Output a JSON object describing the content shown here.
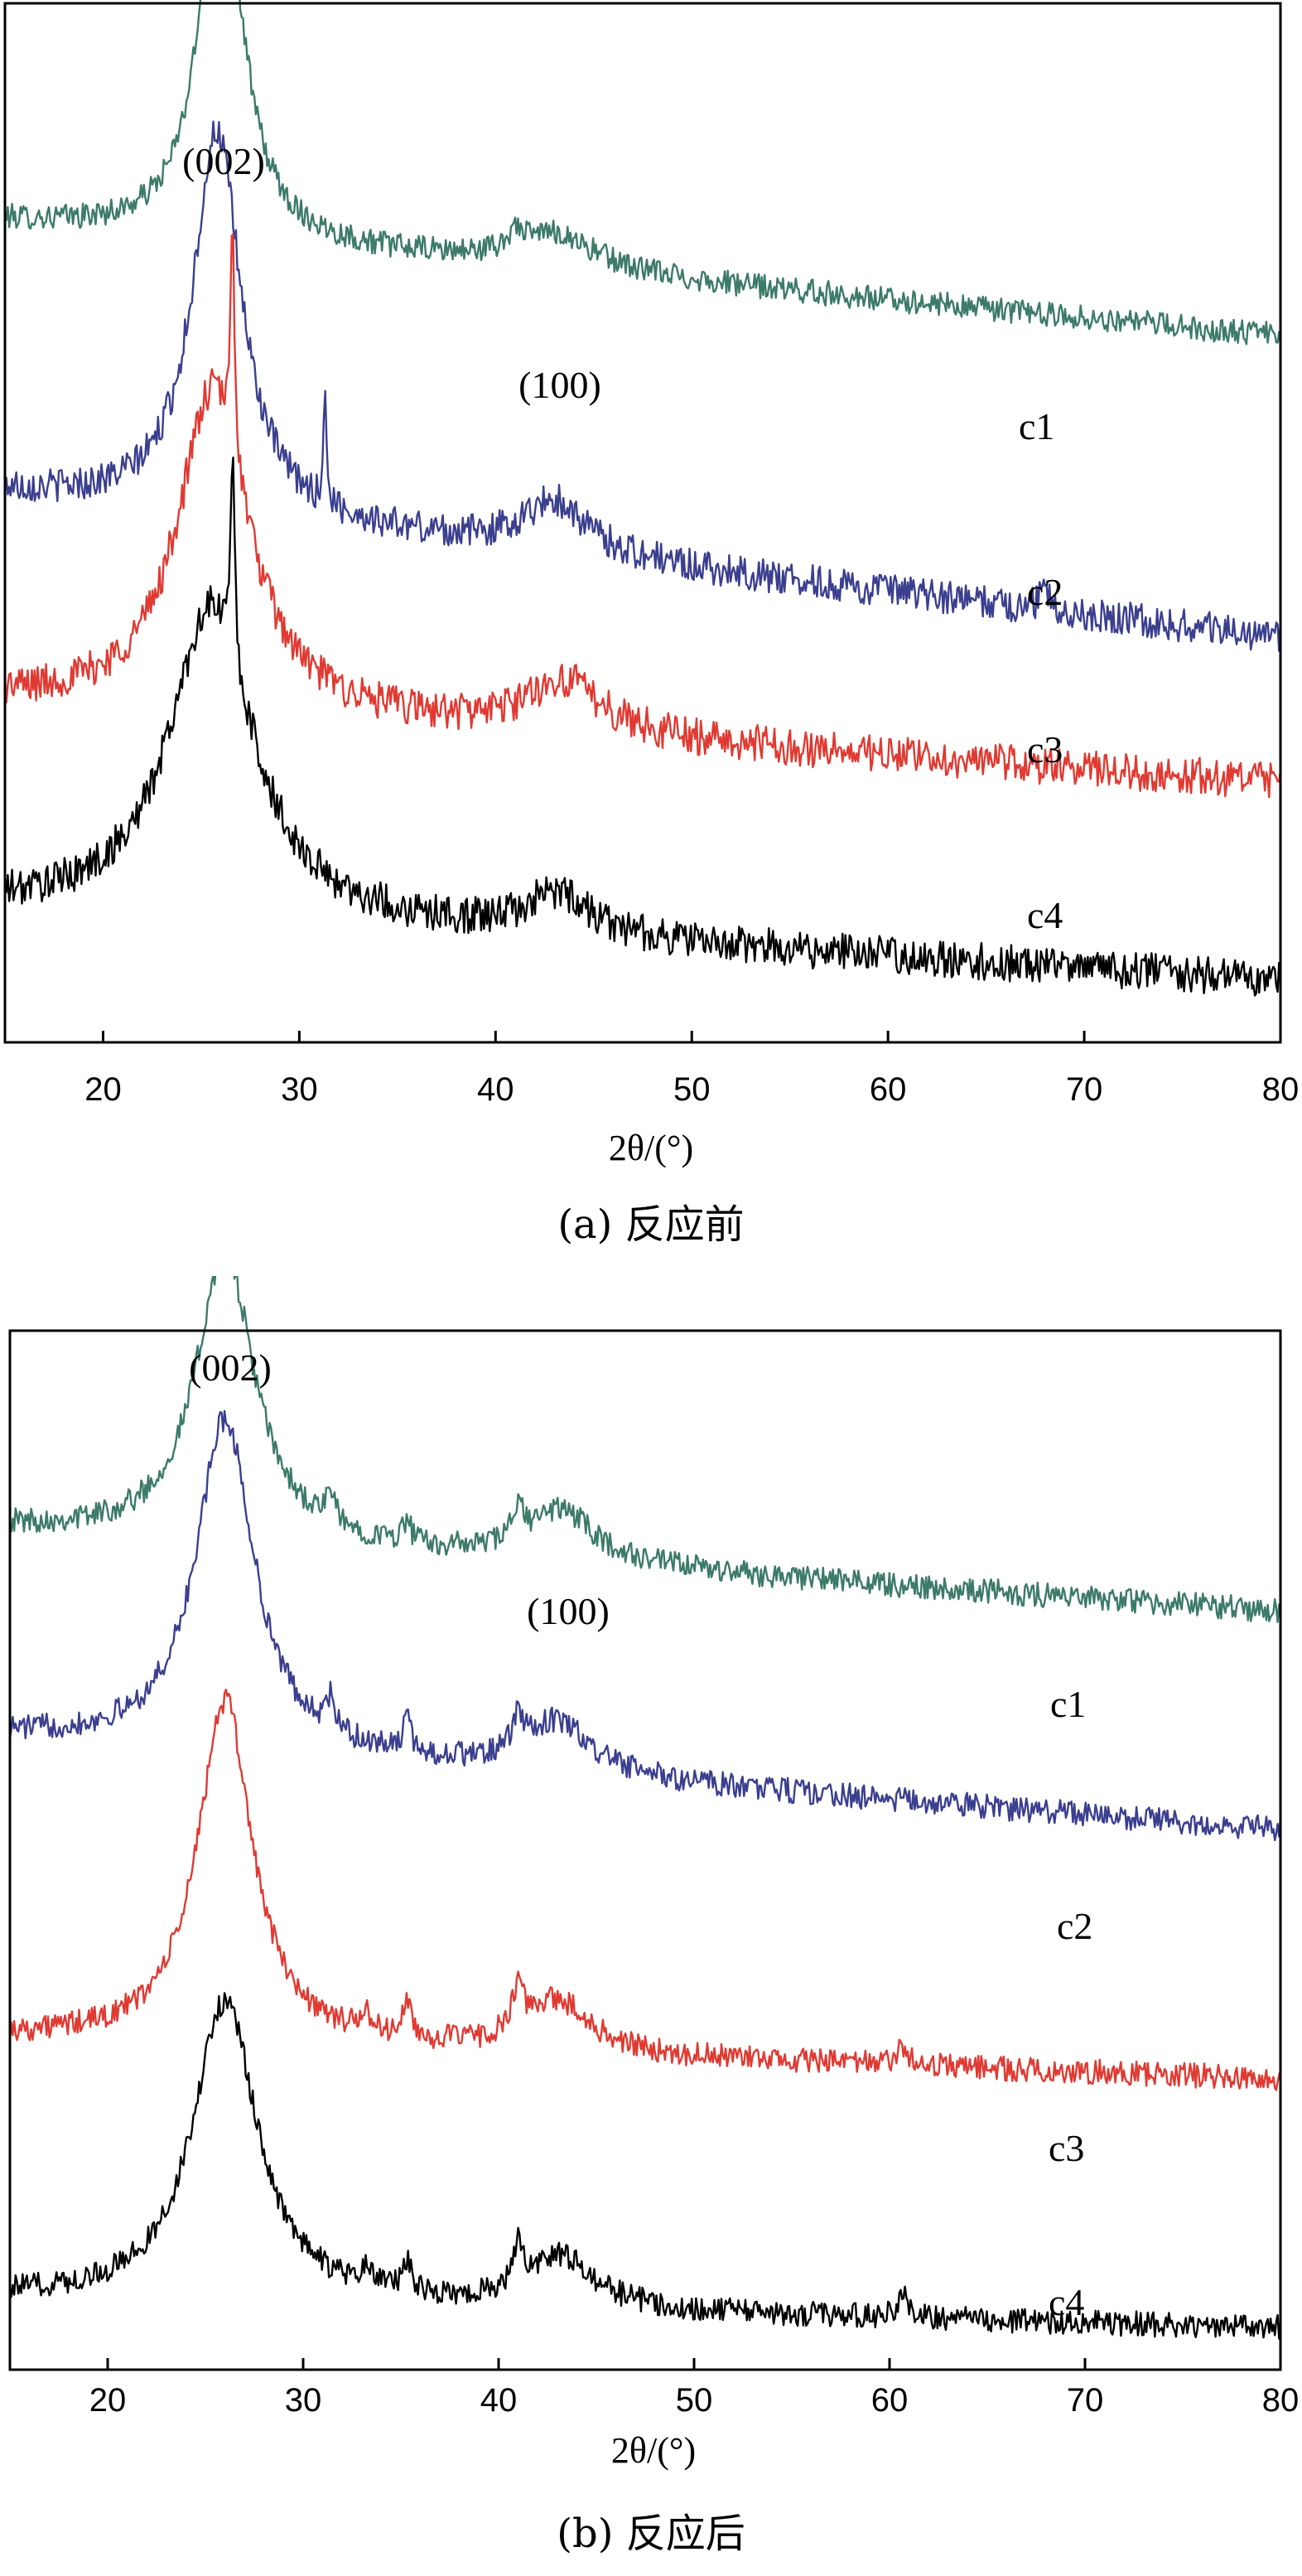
{
  "chart_data": [
    {
      "type": "line",
      "caption": "(a) 反应前",
      "xlabel": "2θ/(°)",
      "ylabel": "",
      "xlim": [
        15,
        80
      ],
      "xticks": [
        20,
        30,
        40,
        50,
        60,
        70,
        80
      ],
      "yticks_shown": false,
      "annotations": [
        {
          "text": "(002)",
          "x": 26
        },
        {
          "text": "(100)",
          "x": 43
        }
      ],
      "series": [
        {
          "name": "c1",
          "color": "#3c7a6a",
          "offset": 0.74,
          "baseline_start": 0.05,
          "baseline_end": -0.06,
          "peaks": [
            {
              "x": 26.0,
              "h": 0.37,
              "w": 1.3
            },
            {
              "x": 43.0,
              "h": 0.035,
              "w": 2.5
            },
            {
              "x": 41.0,
              "h": 0.02,
              "w": 0.3
            }
          ],
          "noise": 0.012
        },
        {
          "name": "c2",
          "color": "#3b3f8f",
          "offset": 0.45,
          "baseline_start": 0.08,
          "baseline_end": -0.06,
          "peaks": [
            {
              "x": 25.8,
              "h": 0.37,
              "w": 1.5
            },
            {
              "x": 31.3,
              "h": 0.12,
              "w": 0.08
            },
            {
              "x": 43.0,
              "h": 0.05,
              "w": 2.0
            },
            {
              "x": 68.0,
              "h": 0.02,
              "w": 0.3
            }
          ],
          "noise": 0.016
        },
        {
          "name": "c3",
          "color": "#e03a32",
          "offset": 0.3,
          "baseline_start": 0.03,
          "baseline_end": -0.05,
          "peaks": [
            {
              "x": 25.6,
              "h": 0.31,
              "w": 2.2
            },
            {
              "x": 26.6,
              "h": 0.22,
              "w": 0.12
            },
            {
              "x": 43.5,
              "h": 0.05,
              "w": 2.4
            }
          ],
          "noise": 0.018
        },
        {
          "name": "c4",
          "color": "#000000",
          "offset": 0.06,
          "baseline_start": 0.07,
          "baseline_end": 0.0,
          "peaks": [
            {
              "x": 25.5,
              "h": 0.3,
              "w": 2.6
            },
            {
              "x": 26.6,
              "h": 0.2,
              "w": 0.12
            },
            {
              "x": 43.2,
              "h": 0.04,
              "w": 2.0
            }
          ],
          "noise": 0.018
        }
      ]
    },
    {
      "type": "line",
      "caption": "(b) 反应后",
      "xlabel": "2θ/(°)",
      "ylabel": "",
      "xlim": [
        15,
        80
      ],
      "xticks": [
        20,
        30,
        40,
        50,
        60,
        70,
        80
      ],
      "yticks_shown": false,
      "annotations": [
        {
          "text": "(002)",
          "x": 26
        },
        {
          "text": "(100)",
          "x": 43
        }
      ],
      "series": [
        {
          "name": "c1",
          "color": "#3c7a6a",
          "offset": 0.75,
          "baseline_start": 0.06,
          "baseline_end": -0.02,
          "peaks": [
            {
              "x": 26.0,
              "h": 0.28,
              "w": 1.8
            },
            {
              "x": 31.4,
              "h": 0.03,
              "w": 0.25
            },
            {
              "x": 35.3,
              "h": 0.02,
              "w": 0.25
            },
            {
              "x": 41.0,
              "h": 0.03,
              "w": 0.35
            },
            {
              "x": 43.2,
              "h": 0.05,
              "w": 2.0
            }
          ],
          "noise": 0.012
        },
        {
          "name": "c2",
          "color": "#3b3f8f",
          "offset": 0.55,
          "baseline_start": 0.06,
          "baseline_end": -0.03,
          "peaks": [
            {
              "x": 26.0,
              "h": 0.32,
              "w": 1.8
            },
            {
              "x": 31.4,
              "h": 0.03,
              "w": 0.25
            },
            {
              "x": 35.3,
              "h": 0.03,
              "w": 0.25
            },
            {
              "x": 41.0,
              "h": 0.03,
              "w": 0.35
            },
            {
              "x": 43.0,
              "h": 0.05,
              "w": 2.0
            }
          ],
          "noise": 0.012
        },
        {
          "name": "c3",
          "color": "#e03a32",
          "offset": 0.28,
          "baseline_start": 0.04,
          "baseline_end": 0.0,
          "peaks": [
            {
              "x": 26.0,
              "h": 0.33,
              "w": 1.7
            },
            {
              "x": 33.2,
              "h": 0.02,
              "w": 0.3
            },
            {
              "x": 35.3,
              "h": 0.03,
              "w": 0.3
            },
            {
              "x": 41.0,
              "h": 0.04,
              "w": 0.35
            },
            {
              "x": 43.0,
              "h": 0.05,
              "w": 2.0
            },
            {
              "x": 60.7,
              "h": 0.02,
              "w": 0.3
            }
          ],
          "noise": 0.012
        },
        {
          "name": "c4",
          "color": "#000000",
          "offset": 0.04,
          "baseline_start": 0.03,
          "baseline_end": 0.0,
          "peaks": [
            {
              "x": 26.0,
              "h": 0.29,
              "w": 2.0
            },
            {
              "x": 33.3,
              "h": 0.02,
              "w": 0.3
            },
            {
              "x": 35.3,
              "h": 0.03,
              "w": 0.3
            },
            {
              "x": 41.0,
              "h": 0.04,
              "w": 0.35
            },
            {
              "x": 43.2,
              "h": 0.05,
              "w": 2.0
            },
            {
              "x": 60.7,
              "h": 0.02,
              "w": 0.3
            }
          ],
          "noise": 0.012
        }
      ]
    }
  ]
}
